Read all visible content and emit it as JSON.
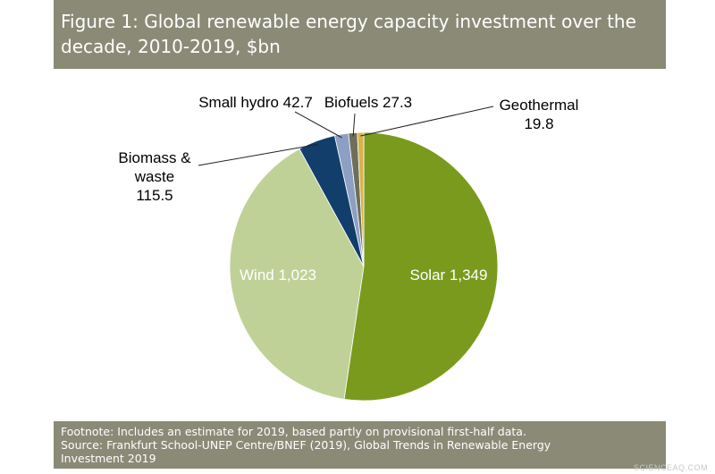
{
  "header": {
    "title_line1": "Figure 1: Global renewable energy capacity investment over the",
    "title_line2": "decade, 2010-2019, $bn"
  },
  "footer": {
    "footnote": "Footnote: Includes an estimate for 2019, based partly on provisional first-half data.",
    "source_line1": "Source: Frankfurt School-UNEP Centre/BNEF (2019), Global Trends in Renewable Energy",
    "source_line2": "Investment 2019"
  },
  "watermark": "SCIENCEAQ.COM",
  "chart_data": {
    "type": "pie",
    "title": "Figure 1: Global renewable energy capacity investment over the decade, 2010-2019, $bn",
    "unit": "$bn",
    "slices": [
      {
        "name": "Solar",
        "value": 1349,
        "value_label": "1,349",
        "color": "#7a9a1e",
        "label_lines": [
          "Solar 1,349"
        ],
        "label_pos": "inside"
      },
      {
        "name": "Wind",
        "value": 1023,
        "value_label": "1,023",
        "color": "#c0d197",
        "label_lines": [
          "Wind 1,023"
        ],
        "label_pos": "inside"
      },
      {
        "name": "Biomass & waste",
        "value": 115.5,
        "value_label": "115.5",
        "color": "#123e6b",
        "label_lines": [
          "Biomass &",
          "waste",
          "115.5"
        ],
        "label_pos": "outside-left"
      },
      {
        "name": "Small hydro",
        "value": 42.7,
        "value_label": "42.7",
        "color": "#8e9fc4",
        "label_lines": [
          "Small hydro 42.7"
        ],
        "label_pos": "outside-top"
      },
      {
        "name": "Biofuels",
        "value": 27.3,
        "value_label": "27.3",
        "color": "#6e6e5a",
        "label_lines": [
          "Biofuels 27.3"
        ],
        "label_pos": "outside-top"
      },
      {
        "name": "Geothermal",
        "value": 19.8,
        "value_label": "19.8",
        "color": "#d8b24a",
        "label_lines": [
          "Geothermal",
          "19.8"
        ],
        "label_pos": "outside-right"
      }
    ]
  }
}
